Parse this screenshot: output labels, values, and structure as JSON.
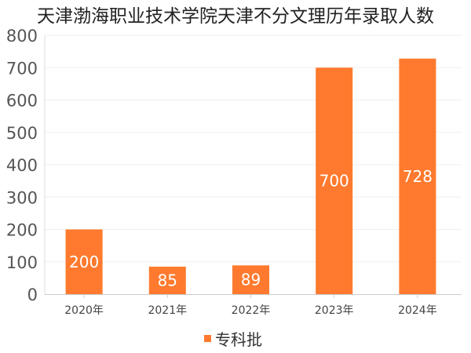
{
  "chart_data": {
    "type": "bar",
    "title": "天津渤海职业技术学院天津不分文理历年录取人数",
    "categories": [
      "2020年",
      "2021年",
      "2022年",
      "2023年",
      "2024年"
    ],
    "series": [
      {
        "name": "专科批",
        "values": [
          200,
          85,
          89,
          700,
          728
        ],
        "color": "#ff7a2e"
      }
    ],
    "data_labels": [
      "200",
      "85",
      "89",
      "700",
      "728"
    ],
    "ylim": [
      0,
      800
    ],
    "yticks": [
      "0",
      "100",
      "200",
      "300",
      "400",
      "500",
      "600",
      "700",
      "800"
    ],
    "grid": true,
    "legend": "bottom-center"
  }
}
